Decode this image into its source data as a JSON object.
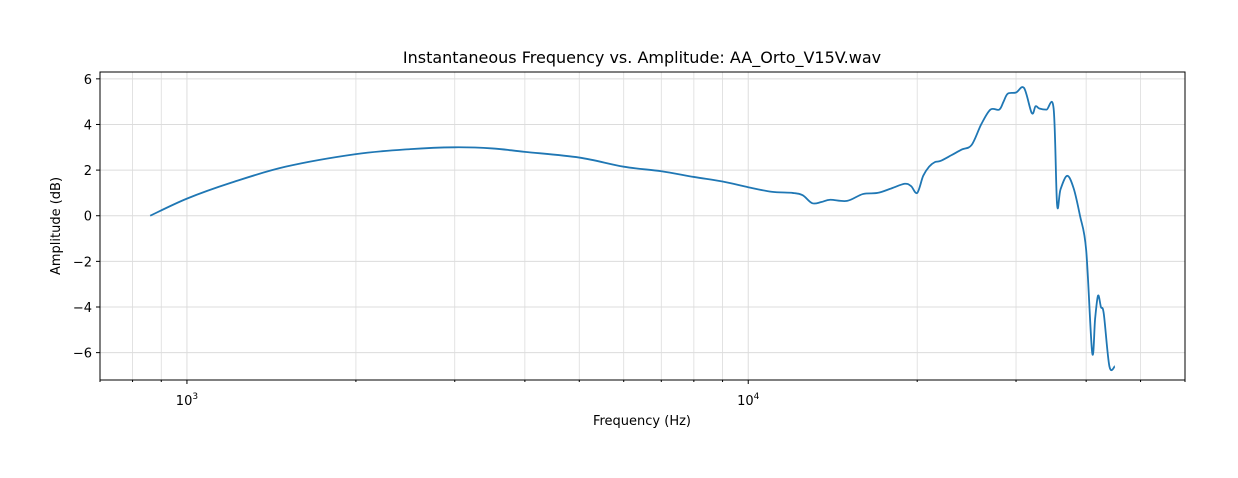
{
  "chart_data": {
    "type": "line",
    "title": "Instantaneous Frequency vs. Amplitude: AA_Orto_V15V.wav",
    "xlabel": "Frequency (Hz)",
    "ylabel": "Amplitude (dB)",
    "xscale": "log",
    "xlim": [
      700,
      60000
    ],
    "ylim": [
      -7.2,
      6.3
    ],
    "xticks": [
      {
        "value": 1000,
        "base": "10",
        "exp": "3"
      },
      {
        "value": 10000,
        "base": "10",
        "exp": "4"
      }
    ],
    "yticks": [
      {
        "value": 6,
        "label": "6"
      },
      {
        "value": 4,
        "label": "4"
      },
      {
        "value": 2,
        "label": "2"
      },
      {
        "value": 0,
        "label": "0"
      },
      {
        "value": -2,
        "label": "−2"
      },
      {
        "value": -4,
        "label": "−4"
      },
      {
        "value": -6,
        "label": "−6"
      }
    ],
    "grid": true,
    "color": "#1f77b4",
    "series": [
      {
        "name": "",
        "x": [
          860,
          1000,
          1200,
          1500,
          2000,
          2500,
          3000,
          3500,
          4000,
          5000,
          6000,
          7000,
          8000,
          9000,
          10000,
          11000,
          12000,
          12500,
          13000,
          13500,
          14000,
          15000,
          16000,
          17000,
          18000,
          19000,
          19500,
          20000,
          20500,
          21000,
          21500,
          22000,
          23000,
          24000,
          25000,
          26000,
          27000,
          28000,
          28500,
          29000,
          30000,
          31000,
          32000,
          32500,
          33000,
          34000,
          35000,
          35500,
          36000,
          37000,
          38000,
          39000,
          40000,
          41000,
          41500,
          42000,
          42500,
          43000,
          44000,
          45000
        ],
        "y": [
          0.0,
          0.75,
          1.45,
          2.15,
          2.7,
          2.92,
          3.0,
          2.95,
          2.8,
          2.55,
          2.15,
          1.95,
          1.7,
          1.5,
          1.25,
          1.05,
          1.0,
          0.9,
          0.55,
          0.6,
          0.7,
          0.65,
          0.95,
          1.0,
          1.2,
          1.4,
          1.3,
          1.0,
          1.75,
          2.15,
          2.35,
          2.4,
          2.65,
          2.9,
          3.1,
          4.0,
          4.65,
          4.65,
          5.0,
          5.35,
          5.4,
          5.6,
          4.5,
          4.8,
          4.7,
          4.65,
          4.7,
          0.5,
          1.15,
          1.75,
          1.2,
          0.0,
          -1.5,
          -6.0,
          -4.5,
          -3.5,
          -4.0,
          -4.3,
          -6.6,
          -6.6
        ]
      }
    ]
  }
}
